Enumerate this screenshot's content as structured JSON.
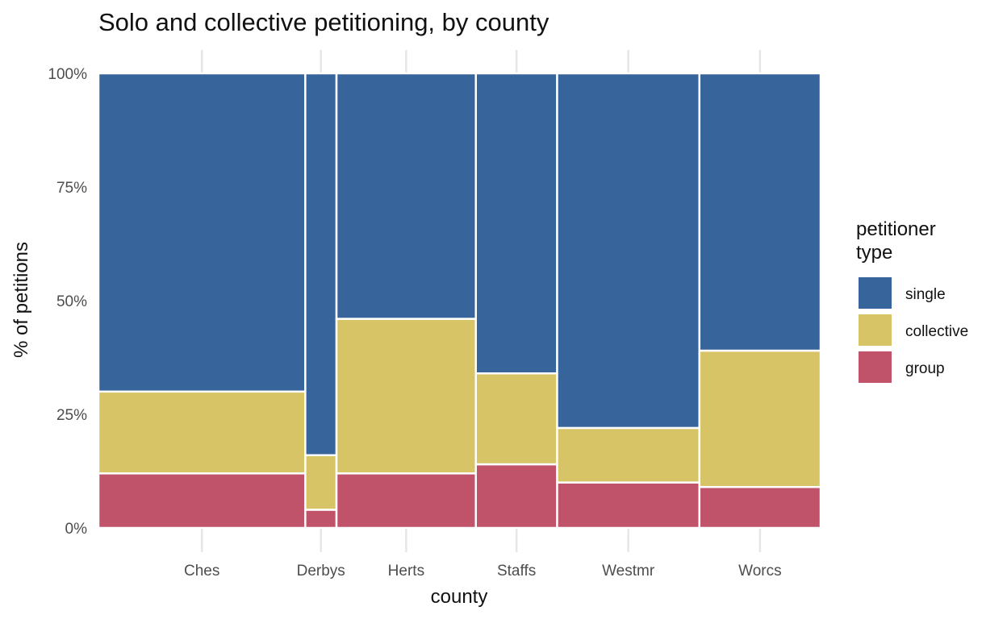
{
  "chart_data": {
    "type": "bar",
    "subtype": "mosaic",
    "title": "Solo and collective petitioning, by county",
    "xlabel": "county",
    "ylabel": "% of petitions",
    "y_ticks": [
      "0%",
      "25%",
      "50%",
      "75%",
      "100%"
    ],
    "ylim": [
      0,
      100
    ],
    "categories": [
      "Ches",
      "Derbys",
      "Herts",
      "Staffs",
      "Westmr",
      "Worcs"
    ],
    "relative_width": [
      28.5,
      4.3,
      19.2,
      11.2,
      19.6,
      16.7
    ],
    "series": [
      {
        "name": "group",
        "values": [
          12,
          4,
          12,
          14,
          10,
          9
        ],
        "color": "#c0526a"
      },
      {
        "name": "collective",
        "values": [
          18,
          12,
          34,
          20,
          12,
          30
        ],
        "color": "#d6c466"
      },
      {
        "name": "single",
        "values": [
          70,
          84,
          54,
          66,
          78,
          61
        ],
        "color": "#37649a"
      }
    ],
    "legend": {
      "title_lines": [
        "petitioner",
        "type"
      ],
      "placement": "right",
      "entries": [
        {
          "label": "single",
          "color": "#37649a"
        },
        {
          "label": "collective",
          "color": "#d6c466"
        },
        {
          "label": "group",
          "color": "#c0526a"
        }
      ]
    },
    "grid": true
  }
}
